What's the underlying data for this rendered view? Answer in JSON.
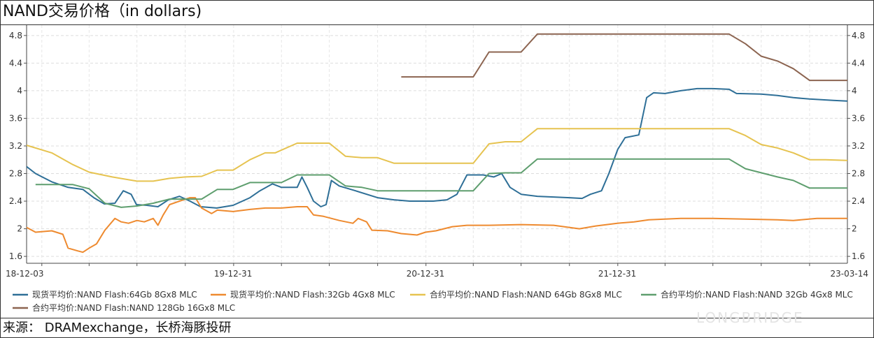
{
  "title": "NAND交易价格（in dollars)",
  "source": "来源： DRAMexchange，长桥海豚投研",
  "watermark": "LONGBRIDGE",
  "chart_data": {
    "type": "line",
    "title": "NAND交易价格（in dollars)",
    "xlabel": "",
    "ylabel": "",
    "x_range": [
      "2018-12-03",
      "2023-03-14"
    ],
    "x_ticks": [
      "18-12-03",
      "19-12-31",
      "20-12-31",
      "21-12-31",
      "23-03-14"
    ],
    "ylim": [
      1.5,
      4.95
    ],
    "y_ticks": [
      1.6,
      2,
      2.4,
      2.8,
      3.2,
      3.6,
      4,
      4.4,
      4.8
    ],
    "y_tick_labels": [
      "1.6",
      "2",
      "2.4",
      "2.8",
      "3.2",
      "3.6",
      "4",
      "4.4",
      "4.8"
    ],
    "grid": true,
    "legend_position": "bottom",
    "series": [
      {
        "name": "现货平均价:NAND Flash:64Gb 8Gx8 MLC",
        "color": "#2e6f97",
        "points": [
          [
            "2018-12-03",
            2.9
          ],
          [
            "2018-12-20",
            2.8
          ],
          [
            "2019-01-20",
            2.68
          ],
          [
            "2019-02-20",
            2.6
          ],
          [
            "2019-03-20",
            2.57
          ],
          [
            "2019-04-10",
            2.45
          ],
          [
            "2019-04-30",
            2.36
          ],
          [
            "2019-05-20",
            2.37
          ],
          [
            "2019-06-05",
            2.55
          ],
          [
            "2019-06-20",
            2.5
          ],
          [
            "2019-06-30",
            2.35
          ],
          [
            "2019-07-20",
            2.34
          ],
          [
            "2019-08-10",
            2.32
          ],
          [
            "2019-08-30",
            2.42
          ],
          [
            "2019-09-20",
            2.47
          ],
          [
            "2019-10-10",
            2.4
          ],
          [
            "2019-10-30",
            2.32
          ],
          [
            "2019-11-30",
            2.3
          ],
          [
            "2019-12-31",
            2.34
          ],
          [
            "2020-02-01",
            2.45
          ],
          [
            "2020-02-20",
            2.55
          ],
          [
            "2020-03-15",
            2.65
          ],
          [
            "2020-04-01",
            2.6
          ],
          [
            "2020-05-01",
            2.6
          ],
          [
            "2020-05-10",
            2.75
          ],
          [
            "2020-05-20",
            2.6
          ],
          [
            "2020-06-01",
            2.4
          ],
          [
            "2020-06-15",
            2.32
          ],
          [
            "2020-06-25",
            2.35
          ],
          [
            "2020-07-05",
            2.7
          ],
          [
            "2020-07-20",
            2.62
          ],
          [
            "2020-08-20",
            2.55
          ],
          [
            "2020-10-01",
            2.45
          ],
          [
            "2020-11-01",
            2.42
          ],
          [
            "2020-12-01",
            2.4
          ],
          [
            "2021-01-15",
            2.4
          ],
          [
            "2021-02-10",
            2.42
          ],
          [
            "2021-03-01",
            2.5
          ],
          [
            "2021-03-20",
            2.78
          ],
          [
            "2021-04-20",
            2.78
          ],
          [
            "2021-05-10",
            2.75
          ],
          [
            "2021-05-25",
            2.8
          ],
          [
            "2021-06-10",
            2.6
          ],
          [
            "2021-07-01",
            2.5
          ],
          [
            "2021-08-01",
            2.47
          ],
          [
            "2021-09-01",
            2.46
          ],
          [
            "2021-10-01",
            2.45
          ],
          [
            "2021-10-25",
            2.44
          ],
          [
            "2021-11-10",
            2.5
          ],
          [
            "2021-12-01",
            2.55
          ],
          [
            "2021-12-15",
            2.8
          ],
          [
            "2022-01-01",
            3.15
          ],
          [
            "2022-01-15",
            3.32
          ],
          [
            "2022-02-10",
            3.36
          ],
          [
            "2022-02-25",
            3.9
          ],
          [
            "2022-03-10",
            3.97
          ],
          [
            "2022-04-01",
            3.96
          ],
          [
            "2022-05-01",
            4.0
          ],
          [
            "2022-06-01",
            4.03
          ],
          [
            "2022-07-01",
            4.03
          ],
          [
            "2022-08-01",
            4.02
          ],
          [
            "2022-08-15",
            3.96
          ],
          [
            "2022-10-01",
            3.95
          ],
          [
            "2022-11-01",
            3.93
          ],
          [
            "2022-12-01",
            3.9
          ],
          [
            "2023-01-01",
            3.88
          ],
          [
            "2023-02-15",
            3.86
          ],
          [
            "2023-03-14",
            3.85
          ]
        ]
      },
      {
        "name": "现货平均价:NAND Flash:32Gb 4Gx8 MLC",
        "color": "#ee8a2f",
        "points": [
          [
            "2018-12-03",
            2.02
          ],
          [
            "2018-12-20",
            1.95
          ],
          [
            "2019-01-20",
            1.97
          ],
          [
            "2019-02-10",
            1.92
          ],
          [
            "2019-02-20",
            1.72
          ],
          [
            "2019-03-10",
            1.68
          ],
          [
            "2019-03-20",
            1.66
          ],
          [
            "2019-04-01",
            1.72
          ],
          [
            "2019-04-15",
            1.78
          ],
          [
            "2019-05-01",
            1.98
          ],
          [
            "2019-05-20",
            2.15
          ],
          [
            "2019-06-01",
            2.1
          ],
          [
            "2019-06-15",
            2.08
          ],
          [
            "2019-07-01",
            2.12
          ],
          [
            "2019-07-15",
            2.1
          ],
          [
            "2019-08-01",
            2.15
          ],
          [
            "2019-08-10",
            2.05
          ],
          [
            "2019-08-20",
            2.2
          ],
          [
            "2019-09-01",
            2.35
          ],
          [
            "2019-09-20",
            2.4
          ],
          [
            "2019-10-10",
            2.45
          ],
          [
            "2019-10-20",
            2.45
          ],
          [
            "2019-11-01",
            2.3
          ],
          [
            "2019-11-20",
            2.22
          ],
          [
            "2019-12-01",
            2.27
          ],
          [
            "2019-12-31",
            2.25
          ],
          [
            "2020-02-01",
            2.28
          ],
          [
            "2020-03-01",
            2.3
          ],
          [
            "2020-04-01",
            2.3
          ],
          [
            "2020-05-01",
            2.32
          ],
          [
            "2020-05-20",
            2.32
          ],
          [
            "2020-06-01",
            2.2
          ],
          [
            "2020-06-20",
            2.18
          ],
          [
            "2020-07-20",
            2.12
          ],
          [
            "2020-08-15",
            2.08
          ],
          [
            "2020-08-25",
            2.15
          ],
          [
            "2020-09-10",
            2.1
          ],
          [
            "2020-09-20",
            1.98
          ],
          [
            "2020-10-20",
            1.97
          ],
          [
            "2020-11-15",
            1.93
          ],
          [
            "2020-12-15",
            1.91
          ],
          [
            "2020-12-31",
            1.95
          ],
          [
            "2021-01-20",
            1.97
          ],
          [
            "2021-02-20",
            2.03
          ],
          [
            "2021-03-20",
            2.05
          ],
          [
            "2021-05-01",
            2.05
          ],
          [
            "2021-07-01",
            2.06
          ],
          [
            "2021-09-01",
            2.05
          ],
          [
            "2021-10-20",
            2.0
          ],
          [
            "2021-11-20",
            2.04
          ],
          [
            "2021-12-31",
            2.08
          ],
          [
            "2022-02-01",
            2.1
          ],
          [
            "2022-03-01",
            2.13
          ],
          [
            "2022-05-01",
            2.15
          ],
          [
            "2022-07-01",
            2.15
          ],
          [
            "2022-09-01",
            2.14
          ],
          [
            "2022-11-01",
            2.13
          ],
          [
            "2022-12-01",
            2.12
          ],
          [
            "2023-01-15",
            2.15
          ],
          [
            "2023-03-14",
            2.15
          ]
        ]
      },
      {
        "name": "合约平均价:NAND Flash:NAND 64Gb 8Gx8 MLC",
        "color": "#e6c350",
        "points": [
          [
            "2018-12-03",
            3.21
          ],
          [
            "2019-01-20",
            3.1
          ],
          [
            "2019-03-01",
            2.93
          ],
          [
            "2019-04-01",
            2.82
          ],
          [
            "2019-05-15",
            2.75
          ],
          [
            "2019-07-01",
            2.69
          ],
          [
            "2019-08-01",
            2.69
          ],
          [
            "2019-09-01",
            2.73
          ],
          [
            "2019-10-01",
            2.75
          ],
          [
            "2019-11-01",
            2.76
          ],
          [
            "2019-12-01",
            2.85
          ],
          [
            "2019-12-31",
            2.85
          ],
          [
            "2020-02-01",
            3.0
          ],
          [
            "2020-03-01",
            3.1
          ],
          [
            "2020-03-20",
            3.1
          ],
          [
            "2020-05-01",
            3.24
          ],
          [
            "2020-07-01",
            3.24
          ],
          [
            "2020-08-01",
            3.05
          ],
          [
            "2020-09-01",
            3.03
          ],
          [
            "2020-10-01",
            3.03
          ],
          [
            "2020-11-01",
            2.95
          ],
          [
            "2020-12-01",
            2.95
          ],
          [
            "2021-01-01",
            2.95
          ],
          [
            "2021-04-01",
            2.95
          ],
          [
            "2021-05-01",
            3.23
          ],
          [
            "2021-06-01",
            3.26
          ],
          [
            "2021-07-01",
            3.26
          ],
          [
            "2021-08-01",
            3.45
          ],
          [
            "2022-01-01",
            3.45
          ],
          [
            "2022-08-01",
            3.45
          ],
          [
            "2022-09-01",
            3.35
          ],
          [
            "2022-10-01",
            3.22
          ],
          [
            "2022-11-01",
            3.17
          ],
          [
            "2022-12-01",
            3.1
          ],
          [
            "2023-01-01",
            3.0
          ],
          [
            "2023-02-01",
            3.0
          ],
          [
            "2023-03-14",
            2.99
          ]
        ]
      },
      {
        "name": "合约平均价:NAND Flash:NAND 32Gb 4Gx8 MLC",
        "color": "#5e9e6e",
        "points": [
          [
            "2018-12-20",
            2.64
          ],
          [
            "2019-02-01",
            2.64
          ],
          [
            "2019-03-01",
            2.64
          ],
          [
            "2019-04-01",
            2.58
          ],
          [
            "2019-05-01",
            2.37
          ],
          [
            "2019-06-01",
            2.31
          ],
          [
            "2019-07-01",
            2.33
          ],
          [
            "2019-08-01",
            2.37
          ],
          [
            "2019-09-01",
            2.43
          ],
          [
            "2019-10-01",
            2.43
          ],
          [
            "2019-11-01",
            2.43
          ],
          [
            "2019-12-01",
            2.57
          ],
          [
            "2019-12-31",
            2.57
          ],
          [
            "2020-02-01",
            2.67
          ],
          [
            "2020-04-01",
            2.67
          ],
          [
            "2020-05-01",
            2.78
          ],
          [
            "2020-07-01",
            2.78
          ],
          [
            "2020-08-01",
            2.62
          ],
          [
            "2020-09-01",
            2.6
          ],
          [
            "2020-10-01",
            2.55
          ],
          [
            "2021-04-01",
            2.55
          ],
          [
            "2021-05-01",
            2.8
          ],
          [
            "2021-06-01",
            2.81
          ],
          [
            "2021-07-01",
            2.81
          ],
          [
            "2021-08-01",
            3.01
          ],
          [
            "2022-01-01",
            3.01
          ],
          [
            "2022-08-01",
            3.01
          ],
          [
            "2022-09-01",
            2.87
          ],
          [
            "2022-11-01",
            2.75
          ],
          [
            "2022-12-01",
            2.7
          ],
          [
            "2023-01-01",
            2.59
          ],
          [
            "2023-03-14",
            2.59
          ]
        ]
      },
      {
        "name": "合约平均价:NAND Flash:NAND 128Gb 16Gx8 MLC",
        "color": "#8c6450",
        "points": [
          [
            "2020-11-15",
            4.2
          ],
          [
            "2021-01-01",
            4.2
          ],
          [
            "2021-04-01",
            4.2
          ],
          [
            "2021-05-01",
            4.56
          ],
          [
            "2021-06-01",
            4.56
          ],
          [
            "2021-07-01",
            4.56
          ],
          [
            "2021-08-01",
            4.82
          ],
          [
            "2022-01-01",
            4.82
          ],
          [
            "2022-08-01",
            4.82
          ],
          [
            "2022-09-01",
            4.68
          ],
          [
            "2022-10-01",
            4.5
          ],
          [
            "2022-11-01",
            4.43
          ],
          [
            "2022-12-01",
            4.32
          ],
          [
            "2023-01-01",
            4.15
          ],
          [
            "2023-03-14",
            4.15
          ]
        ]
      }
    ]
  }
}
